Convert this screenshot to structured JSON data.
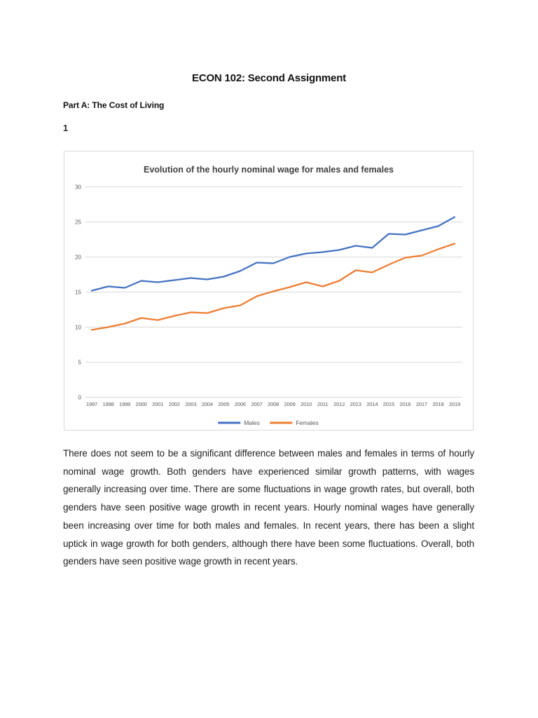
{
  "page": {
    "title": "ECON 102: Second Assignment",
    "section_heading": "Part A: The Cost of Living",
    "question_number": "1",
    "paragraph": "There does not seem to be a significant difference between males and females in terms of hourly nominal wage growth. Both genders have experienced similar growth patterns, with wages generally increasing over time. There are some fluctuations in wage growth rates, but overall, both genders have seen positive wage growth in recent years. Hourly nominal wages have generally been increasing over time for both males and females. In recent years, there has been a slight uptick in wage growth for both genders, although there have been some fluctuations. Overall, both genders have seen positive wage growth in recent years."
  },
  "chart_data": {
    "type": "line",
    "title": "Evolution of the hourly nominal wage for males and females",
    "x": [
      1997,
      1998,
      1999,
      2000,
      2001,
      2002,
      2003,
      2004,
      2005,
      2006,
      2007,
      2008,
      2009,
      2010,
      2011,
      2012,
      2013,
      2014,
      2015,
      2016,
      2017,
      2018,
      2019
    ],
    "series": [
      {
        "name": "Males",
        "color": "#4472C4",
        "values": [
          15.2,
          15.8,
          15.6,
          16.6,
          16.4,
          16.7,
          17.0,
          16.8,
          17.2,
          18.0,
          19.2,
          19.1,
          20.0,
          20.5,
          20.7,
          21.0,
          21.6,
          21.3,
          23.3,
          23.2,
          23.8,
          24.4,
          25.7
        ]
      },
      {
        "name": "Females",
        "color": "#ED7D31",
        "values": [
          9.6,
          10.0,
          10.5,
          11.3,
          11.0,
          11.6,
          12.1,
          12.0,
          12.7,
          13.1,
          14.4,
          15.1,
          15.7,
          16.4,
          15.8,
          16.6,
          18.1,
          17.8,
          18.9,
          19.9,
          20.2,
          21.1,
          21.9
        ]
      }
    ],
    "xlabel": "",
    "ylabel": "",
    "ylim": [
      0,
      30
    ],
    "yticks": [
      0,
      5,
      10,
      15,
      20,
      25,
      30
    ],
    "grid": true,
    "legend_position": "bottom"
  },
  "colors": {
    "males_line": "#4472C4",
    "females_line": "#ED7D31",
    "gridline": "#D9D9D9",
    "axis_label": "#595959",
    "chart_title": "#3F3F3F",
    "chart_border": "#D9D9D9"
  }
}
